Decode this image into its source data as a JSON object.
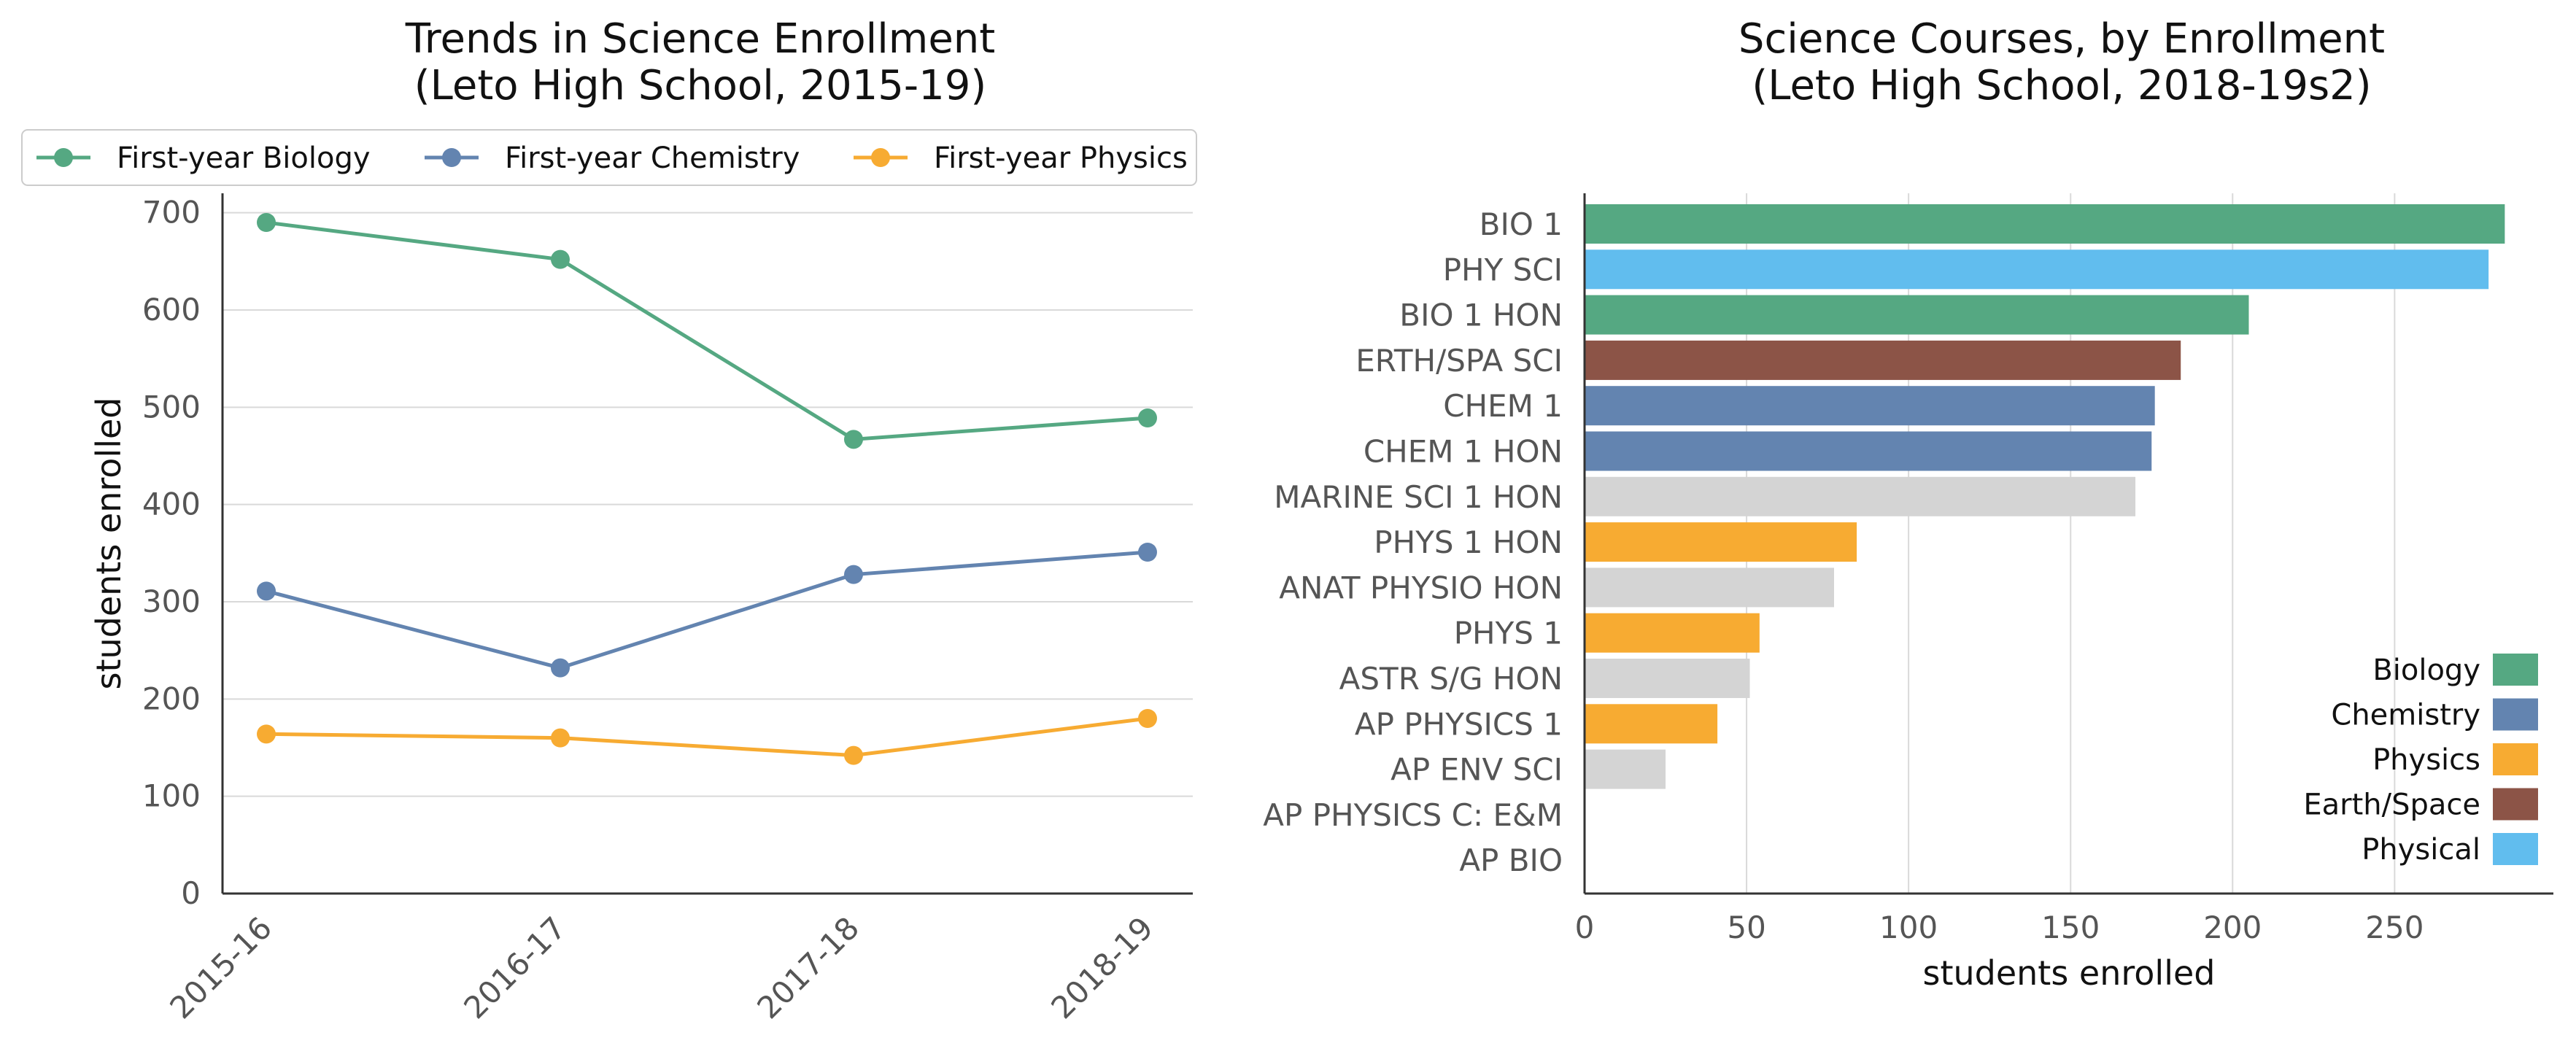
{
  "colors": {
    "biology": "#55a882",
    "chemistry": "#6384b0",
    "physics": "#f7ab32",
    "earth_space": "#8c5447",
    "physical": "#61bdee",
    "other": "#d4d4d4"
  },
  "chart_data": [
    {
      "type": "line",
      "title": "Trends in Science Enrollment\n(Leto High School, 2015-19)",
      "ylabel": "students enrolled",
      "xlabel": "",
      "categories": [
        "2015-16",
        "2016-17",
        "2017-18",
        "2018-19"
      ],
      "series": [
        {
          "name": "First-year Biology",
          "color_key": "biology",
          "values": [
            690,
            652,
            467,
            489
          ]
        },
        {
          "name": "First-year Chemistry",
          "color_key": "chemistry",
          "values": [
            311,
            232,
            328,
            351
          ]
        },
        {
          "name": "First-year Physics",
          "color_key": "physics",
          "values": [
            164,
            160,
            142,
            180
          ]
        }
      ],
      "ylim": [
        0,
        720
      ],
      "yticks": [
        0,
        100,
        200,
        300,
        400,
        500,
        600,
        700
      ],
      "grid": "horizontal",
      "legend": "top"
    },
    {
      "type": "bar",
      "orientation": "horizontal",
      "title": "Science Courses, by Enrollment\n(Leto High School, 2018-19s2)",
      "xlabel": "students enrolled",
      "ylabel": "",
      "categories": [
        "BIO 1",
        "PHY SCI",
        "BIO 1 HON",
        "ERTH/SPA SCI",
        "CHEM 1",
        "CHEM 1 HON",
        "MARINE SCI 1 HON",
        "PHYS 1 HON",
        "ANAT PHYSIO HON",
        "PHYS 1",
        "ASTR S/G HON",
        "AP PHYSICS 1",
        "AP ENV SCI",
        "AP PHYSICS C: E&M",
        "AP BIO"
      ],
      "values": [
        284,
        279,
        205,
        184,
        176,
        175,
        170,
        84,
        77,
        54,
        51,
        41,
        25,
        0,
        0
      ],
      "groups": [
        "biology",
        "physical",
        "biology",
        "earth_space",
        "chemistry",
        "chemistry",
        "other",
        "physics",
        "other",
        "physics",
        "other",
        "physics",
        "other",
        "other",
        "other"
      ],
      "xlim": [
        0,
        299
      ],
      "xticks": [
        0,
        50,
        100,
        150,
        200,
        250
      ],
      "grid": "vertical",
      "legend": "bottom-right",
      "legend_entries": [
        {
          "name": "Biology",
          "color_key": "biology"
        },
        {
          "name": "Chemistry",
          "color_key": "chemistry"
        },
        {
          "name": "Physics",
          "color_key": "physics"
        },
        {
          "name": "Earth/Space",
          "color_key": "earth_space"
        },
        {
          "name": "Physical",
          "color_key": "physical"
        }
      ]
    }
  ]
}
